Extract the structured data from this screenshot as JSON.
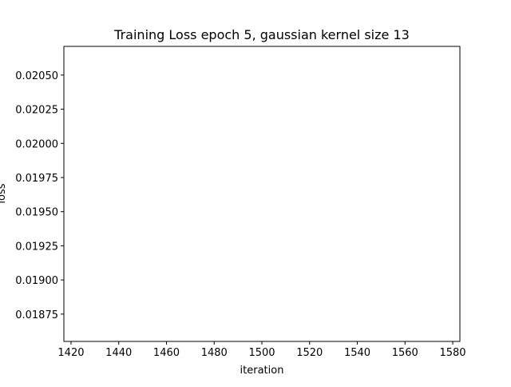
{
  "chart_data": {
    "type": "line",
    "title": "Training Loss epoch 5, gaussian kernel size 13",
    "xlabel": "iteration",
    "ylabel": "loss",
    "xlim": [
      1417,
      1583
    ],
    "ylim": [
      0.01855,
      0.02071
    ],
    "x_ticks": [
      1420,
      1440,
      1460,
      1480,
      1500,
      1520,
      1540,
      1560,
      1580
    ],
    "x_tick_labels": [
      "1420",
      "1440",
      "1460",
      "1480",
      "1500",
      "1520",
      "1540",
      "1560",
      "1580"
    ],
    "y_ticks": [
      0.01875,
      0.019,
      0.01925,
      0.0195,
      0.01975,
      0.02,
      0.02025,
      0.0205
    ],
    "y_tick_labels": [
      "0.01875",
      "0.01900",
      "0.01925",
      "0.01950",
      "0.01975",
      "0.02000",
      "0.02025",
      "0.02050"
    ],
    "grid": false,
    "legend": null,
    "series": [
      {
        "x": [],
        "y": [],
        "color": "#1f77b4"
      }
    ]
  }
}
